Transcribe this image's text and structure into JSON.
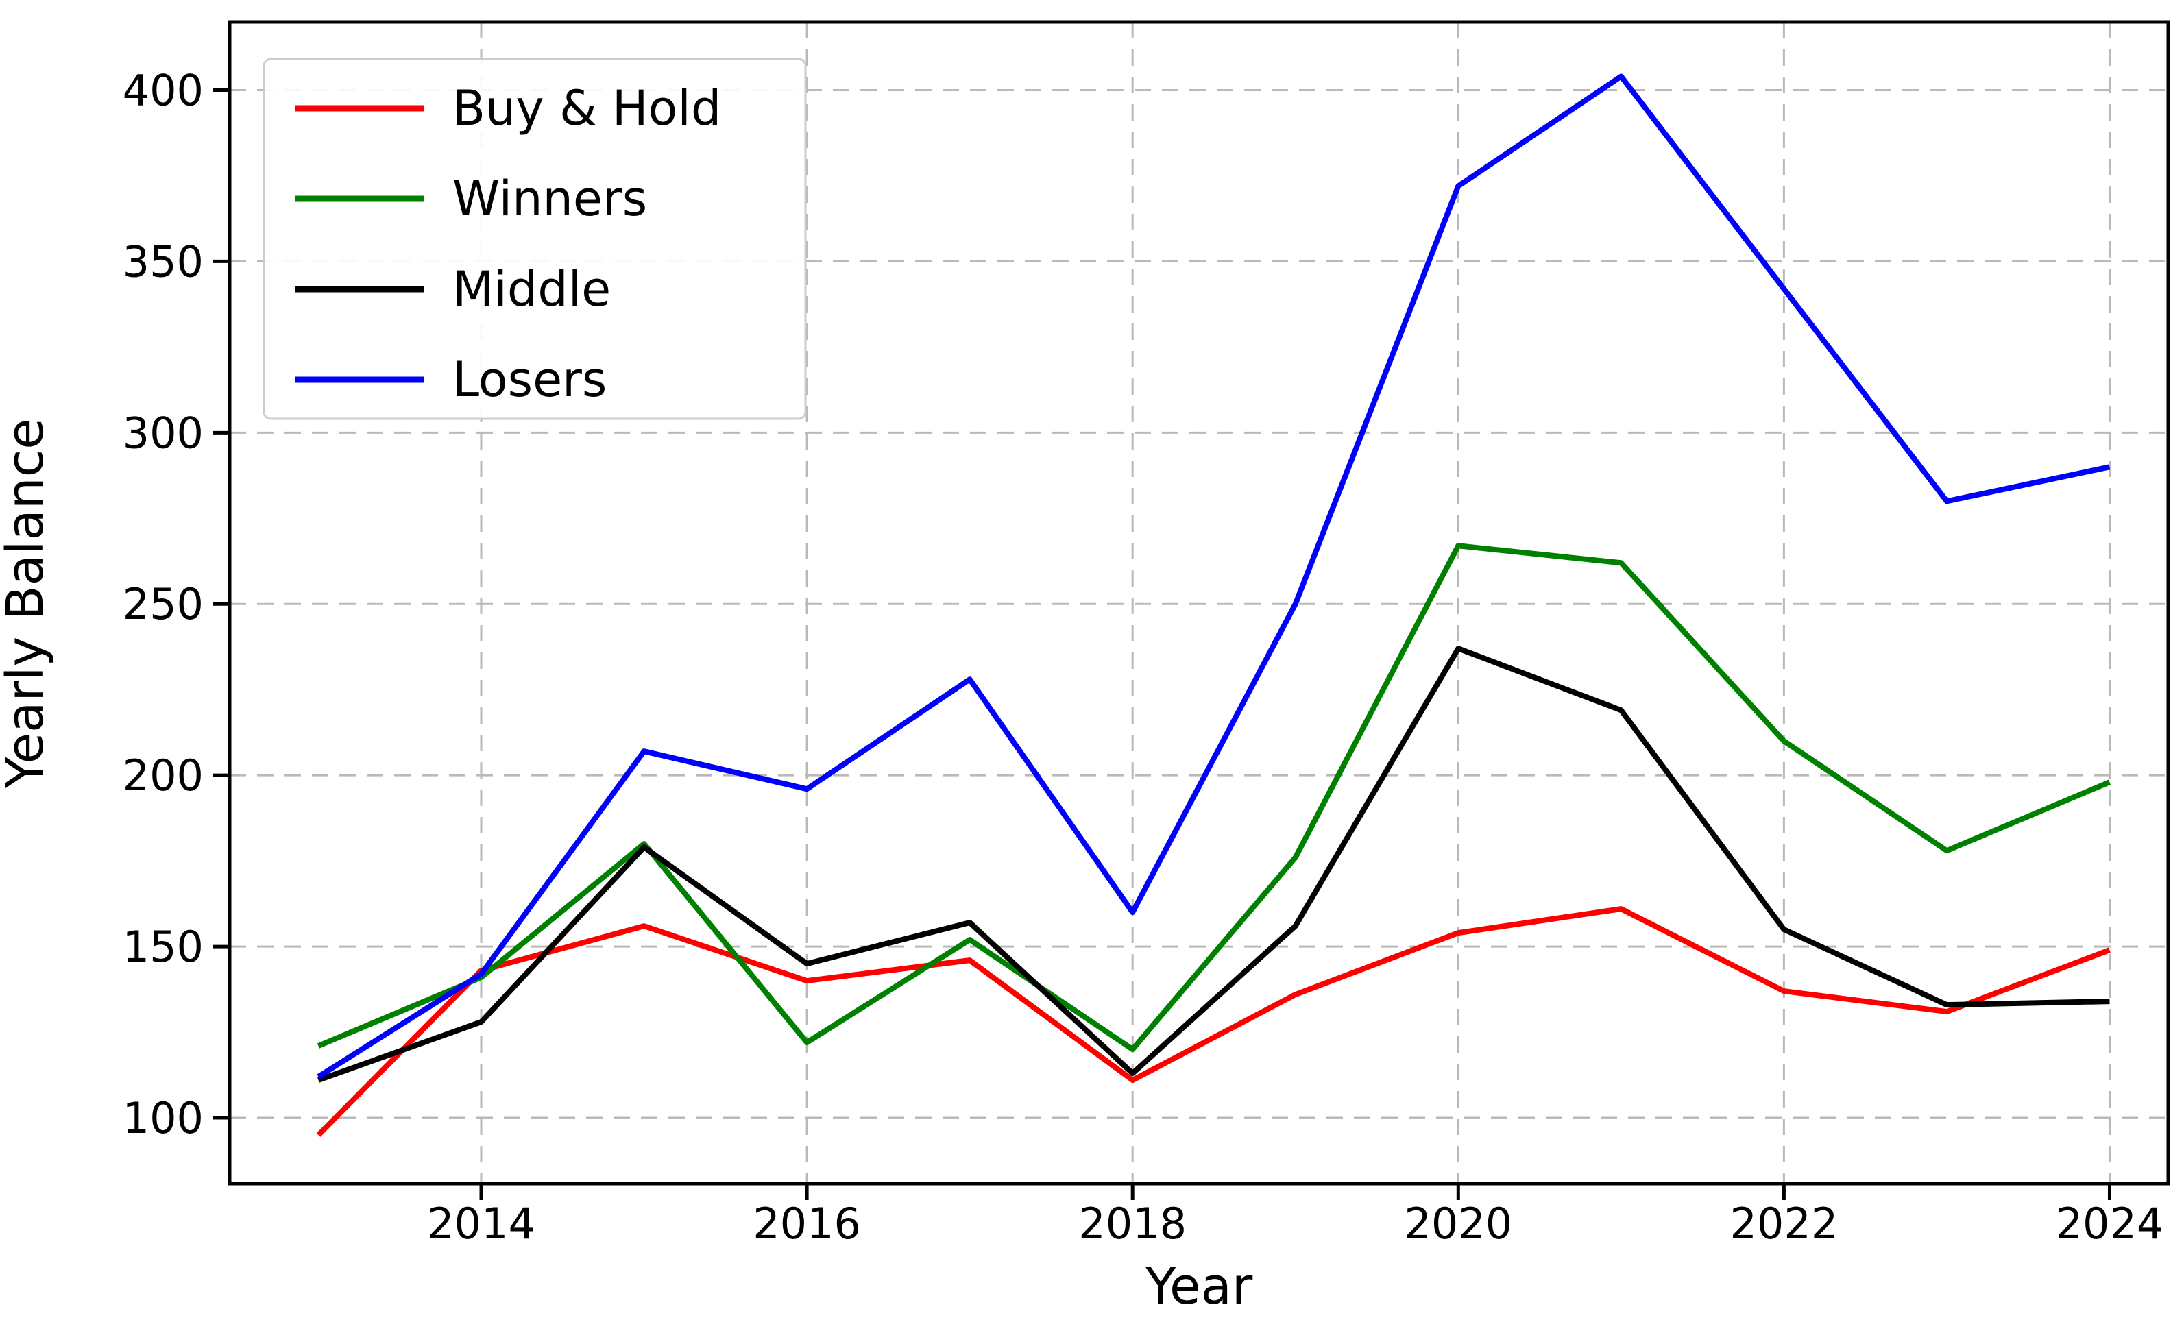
{
  "chart_data": {
    "type": "line",
    "title": "",
    "xlabel": "Year",
    "ylabel": "Yearly Balance",
    "x": [
      2013,
      2014,
      2015,
      2016,
      2017,
      2018,
      2019,
      2020,
      2021,
      2022,
      2023,
      2024
    ],
    "series": [
      {
        "name": "Buy & Hold",
        "color": "#ff0000",
        "values": [
          95,
          143,
          156,
          140,
          146,
          111,
          136,
          154,
          161,
          137,
          131,
          149
        ]
      },
      {
        "name": "Winners",
        "color": "#008000",
        "values": [
          121,
          141,
          180,
          122,
          152,
          120,
          176,
          267,
          262,
          210,
          178,
          198
        ]
      },
      {
        "name": "Middle",
        "color": "#000000",
        "values": [
          111,
          128,
          179,
          145,
          157,
          113,
          156,
          237,
          219,
          155,
          133,
          134
        ]
      },
      {
        "name": "Losers",
        "color": "#0000ff",
        "values": [
          112,
          142,
          207,
          196,
          228,
          160,
          250,
          372,
          404,
          342,
          280,
          290
        ]
      }
    ],
    "xticks": [
      2014,
      2016,
      2018,
      2020,
      2022,
      2024
    ],
    "yticks": [
      100,
      150,
      200,
      250,
      300,
      350,
      400
    ],
    "xlim": [
      2012.455,
      2024.36
    ],
    "ylim": [
      80.8,
      419.9
    ],
    "grid": "dashed",
    "grid_color": "#b9b9b9",
    "axis_color": "#000000",
    "legend_position": "top-left"
  }
}
